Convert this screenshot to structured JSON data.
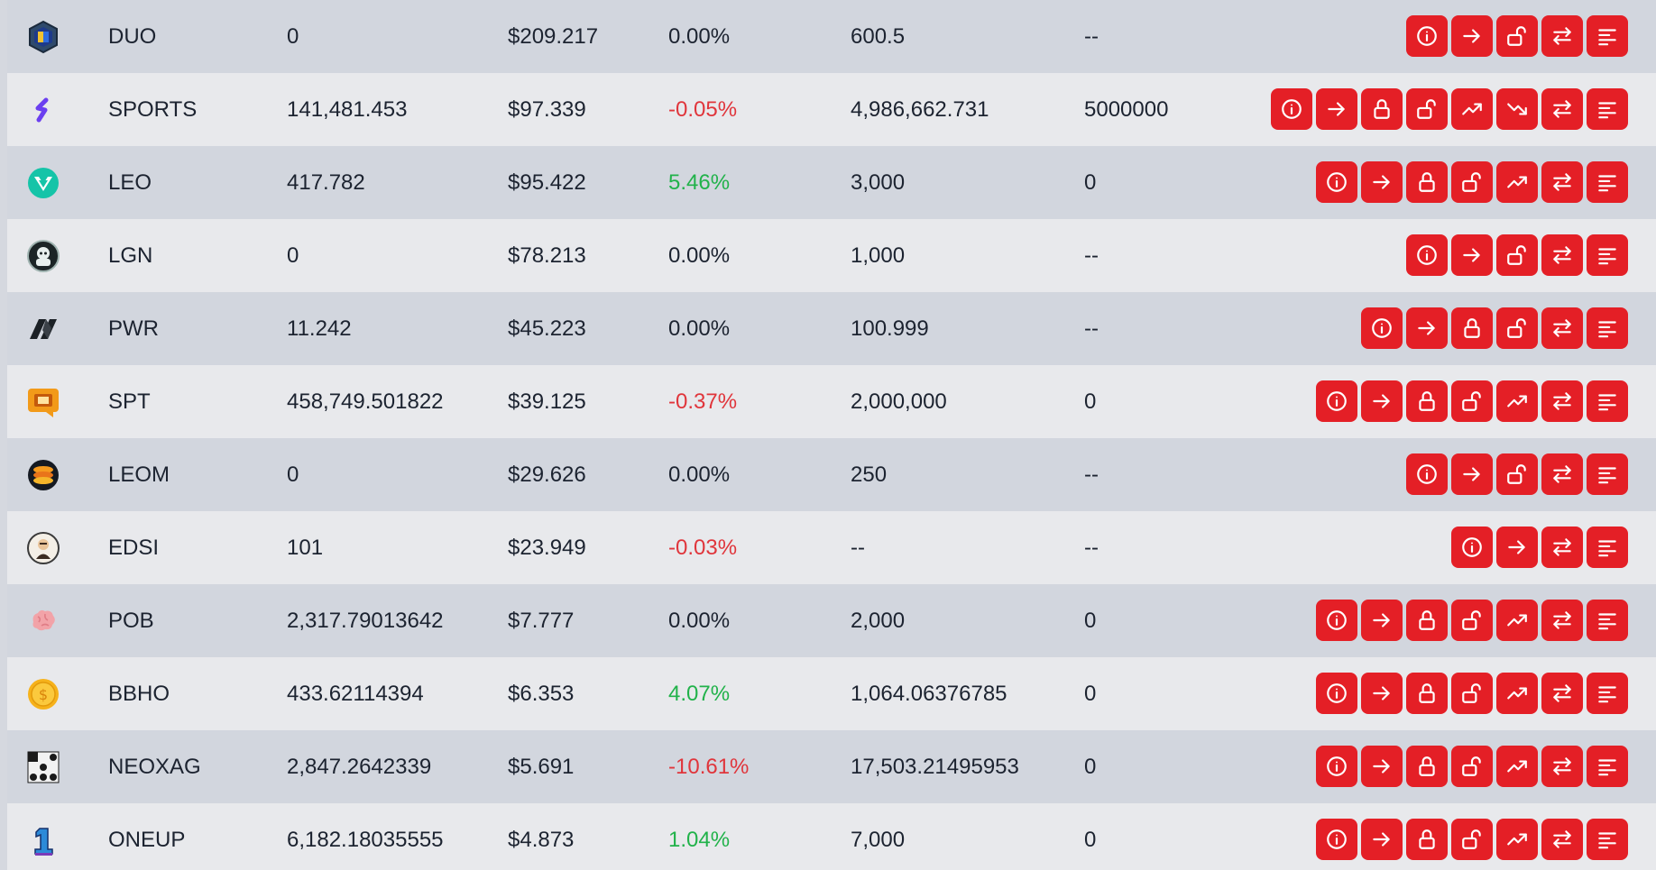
{
  "colors": {
    "button_bg": "#e41f26",
    "positive": "#21b24a",
    "negative": "#e0353b",
    "row_dark": "#d2d6de",
    "row_light": "#e8e9ec"
  },
  "rows": [
    {
      "symbol": "DUO",
      "balance": "0",
      "price": "$209.217",
      "change": "0.00%",
      "stake": "600.5",
      "delegate": "--",
      "icon": "duo-icon",
      "actions": [
        "info",
        "transfer",
        "unstake",
        "swap",
        "menu"
      ]
    },
    {
      "symbol": "SPORTS",
      "balance": "141,481.453",
      "price": "$97.339",
      "change": "-0.05%",
      "stake": "4,986,662.731",
      "delegate": "5000000",
      "icon": "sports-icon",
      "actions": [
        "info",
        "transfer",
        "stake",
        "unstake",
        "delegate",
        "undelegate",
        "swap",
        "menu"
      ]
    },
    {
      "symbol": "LEO",
      "balance": "417.782",
      "price": "$95.422",
      "change": "5.46%",
      "stake": "3,000",
      "delegate": "0",
      "icon": "leo-icon",
      "actions": [
        "info",
        "transfer",
        "stake",
        "unstake",
        "delegate",
        "swap",
        "menu"
      ]
    },
    {
      "symbol": "LGN",
      "balance": "0",
      "price": "$78.213",
      "change": "0.00%",
      "stake": "1,000",
      "delegate": "--",
      "icon": "lgn-icon",
      "actions": [
        "info",
        "transfer",
        "unstake",
        "swap",
        "menu"
      ]
    },
    {
      "symbol": "PWR",
      "balance": "11.242",
      "price": "$45.223",
      "change": "0.00%",
      "stake": "100.999",
      "delegate": "--",
      "icon": "pwr-icon",
      "actions": [
        "info",
        "transfer",
        "stake",
        "unstake",
        "swap",
        "menu"
      ]
    },
    {
      "symbol": "SPT",
      "balance": "458,749.501822",
      "price": "$39.125",
      "change": "-0.37%",
      "stake": "2,000,000",
      "delegate": "0",
      "icon": "spt-icon",
      "actions": [
        "info",
        "transfer",
        "stake",
        "unstake",
        "delegate",
        "swap",
        "menu"
      ]
    },
    {
      "symbol": "LEOM",
      "balance": "0",
      "price": "$29.626",
      "change": "0.00%",
      "stake": "250",
      "delegate": "--",
      "icon": "leom-icon",
      "actions": [
        "info",
        "transfer",
        "unstake",
        "swap",
        "menu"
      ]
    },
    {
      "symbol": "EDSI",
      "balance": "101",
      "price": "$23.949",
      "change": "-0.03%",
      "stake": "--",
      "delegate": "--",
      "icon": "edsi-icon",
      "actions": [
        "info",
        "transfer",
        "swap",
        "menu"
      ]
    },
    {
      "symbol": "POB",
      "balance": "2,317.79013642",
      "price": "$7.777",
      "change": "0.00%",
      "stake": "2,000",
      "delegate": "0",
      "icon": "pob-icon",
      "actions": [
        "info",
        "transfer",
        "stake",
        "unstake",
        "delegate",
        "swap",
        "menu"
      ]
    },
    {
      "symbol": "BBHO",
      "balance": "433.62114394",
      "price": "$6.353",
      "change": "4.07%",
      "stake": "1,064.06376785",
      "delegate": "0",
      "icon": "bbho-icon",
      "actions": [
        "info",
        "transfer",
        "stake",
        "unstake",
        "delegate",
        "swap",
        "menu"
      ]
    },
    {
      "symbol": "NEOXAG",
      "balance": "2,847.2642339",
      "price": "$5.691",
      "change": "-10.61%",
      "stake": "17,503.21495953",
      "delegate": "0",
      "icon": "neoxag-icon",
      "actions": [
        "info",
        "transfer",
        "stake",
        "unstake",
        "delegate",
        "swap",
        "menu"
      ]
    },
    {
      "symbol": "ONEUP",
      "balance": "6,182.18035555",
      "price": "$4.873",
      "change": "1.04%",
      "stake": "7,000",
      "delegate": "0",
      "icon": "oneup-icon",
      "actions": [
        "info",
        "transfer",
        "stake",
        "unstake",
        "delegate",
        "swap",
        "menu"
      ]
    }
  ]
}
